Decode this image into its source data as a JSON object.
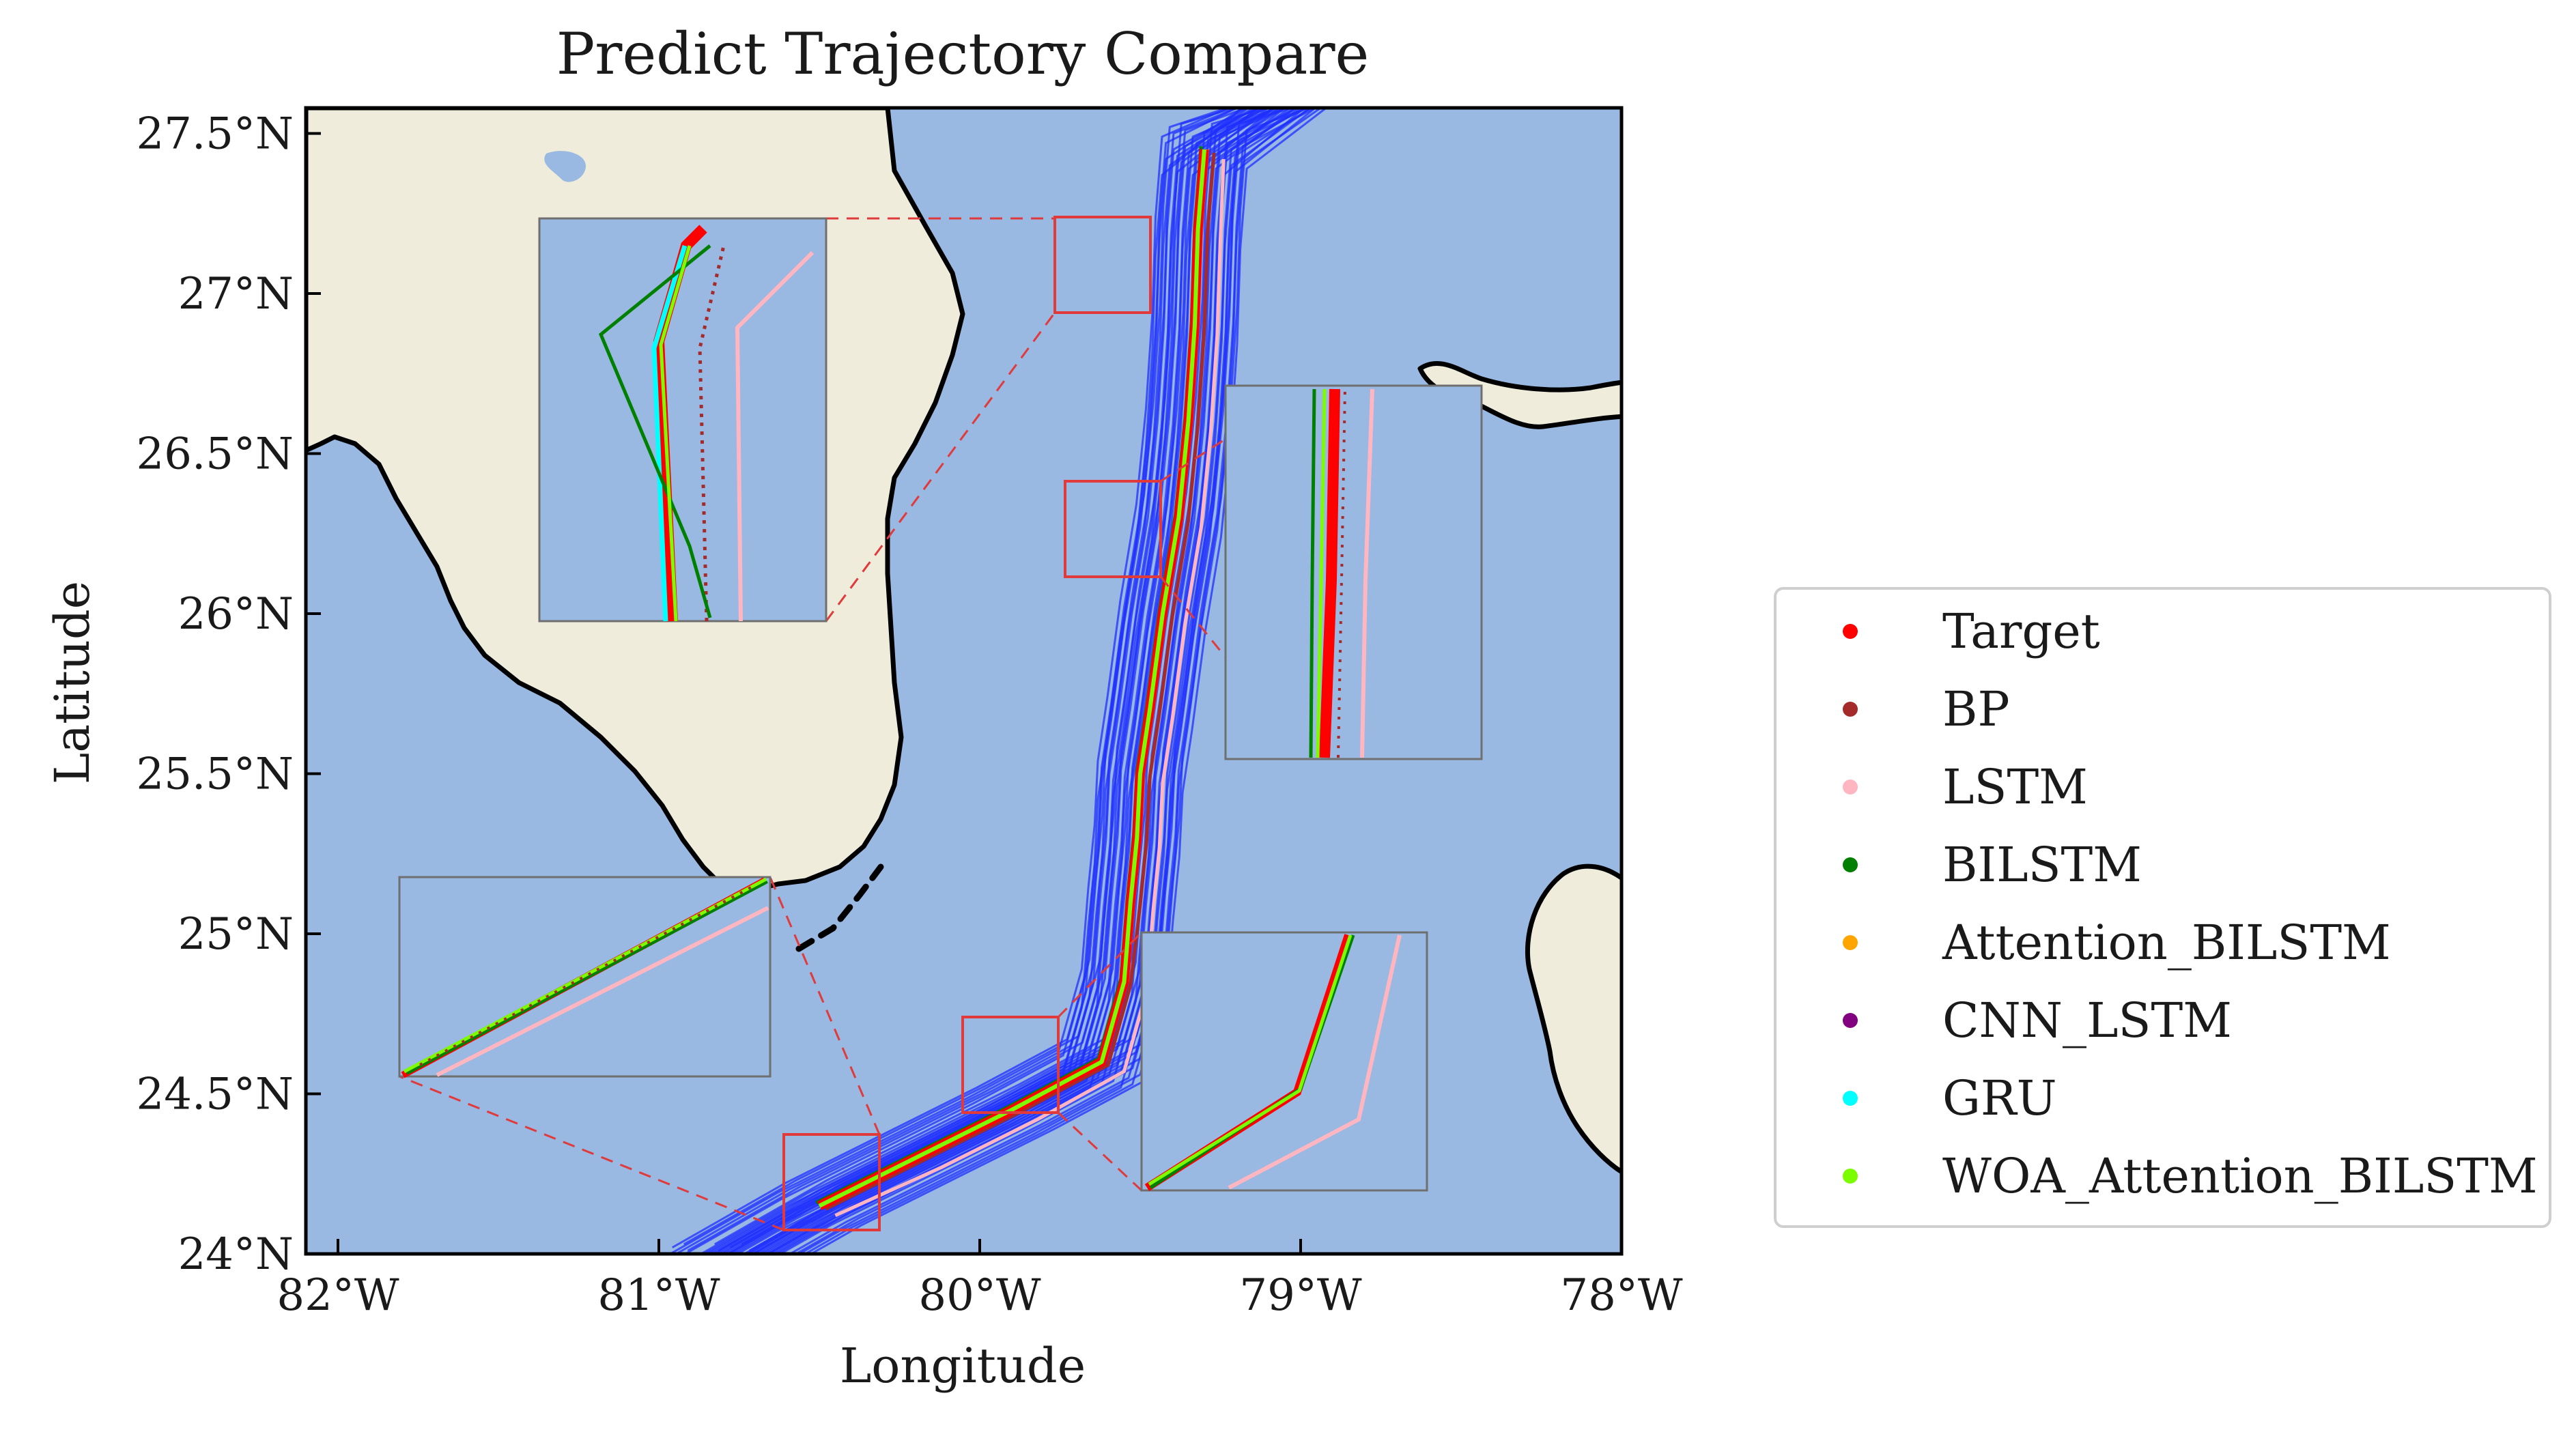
{
  "title": "Predict Trajectory Compare",
  "axes": {
    "xlabel": "Longitude",
    "ylabel": "Latitude",
    "x_ticks": [
      {
        "value": -82,
        "label": "82°W"
      },
      {
        "value": -81,
        "label": "81°W"
      },
      {
        "value": -80,
        "label": "80°W"
      },
      {
        "value": -79,
        "label": "79°W"
      },
      {
        "value": -78,
        "label": "78°W"
      }
    ],
    "y_ticks": [
      {
        "value": 24,
        "label": "24°N"
      },
      {
        "value": 24.5,
        "label": "24.5°N"
      },
      {
        "value": 25,
        "label": "25°N"
      },
      {
        "value": 25.5,
        "label": "25.5°N"
      },
      {
        "value": 26,
        "label": "26°N"
      },
      {
        "value": 26.5,
        "label": "26.5°N"
      },
      {
        "value": 27,
        "label": "27°N"
      },
      {
        "value": 27.5,
        "label": "27.5°N"
      }
    ]
  },
  "colors": {
    "ocean": "#99b8e2",
    "land": "#efecdc",
    "coastline": "#000000",
    "trajectory_bundle": "#1f2fff",
    "zoom_box": "#e03a3a",
    "inset_border": "#6f6f6f"
  },
  "legend": {
    "placement": "right",
    "items": [
      {
        "label": "Target",
        "color": "#ff0000"
      },
      {
        "label": "BP",
        "color": "#a52a2a"
      },
      {
        "label": "LSTM",
        "color": "#ffb6c1"
      },
      {
        "label": "BILSTM",
        "color": "#008000"
      },
      {
        "label": "Attention_BILSTM",
        "color": "#ffa500"
      },
      {
        "label": "CNN_LSTM",
        "color": "#800080"
      },
      {
        "label": "GRU",
        "color": "#00ffff"
      },
      {
        "label": "WOA_Attention_BILSTM",
        "color": "#7cfc00"
      }
    ]
  },
  "chart_data": {
    "type": "scatter",
    "title": "Predict Trajectory Compare",
    "xlabel": "Longitude",
    "ylabel": "Latitude",
    "xlim": [
      -82.1,
      -78.0
    ],
    "ylim": [
      24.0,
      27.58
    ],
    "grid": false,
    "legend_placement": "right",
    "series": [
      {
        "name": "Target",
        "x": [
          -80.5,
          -80.2,
          -79.9,
          -79.62,
          -79.55,
          -79.53,
          -79.51,
          -79.5,
          -79.47,
          -79.43,
          -79.38,
          -79.35,
          -79.33,
          -79.32,
          -79.3
        ],
        "y": [
          24.15,
          24.3,
          24.45,
          24.6,
          24.85,
          25.1,
          25.3,
          25.5,
          25.7,
          26.0,
          26.3,
          26.6,
          26.9,
          27.2,
          27.45
        ]
      },
      {
        "name": "BP",
        "x": [
          -80.48,
          -80.18,
          -79.88,
          -79.6,
          -79.53,
          -79.5,
          -79.48,
          -79.47,
          -79.44,
          -79.4,
          -79.35,
          -79.32,
          -79.3,
          -79.29,
          -79.27
        ],
        "y": [
          24.14,
          24.29,
          24.44,
          24.59,
          24.84,
          25.09,
          25.29,
          25.49,
          25.69,
          25.99,
          26.29,
          26.59,
          26.89,
          27.19,
          27.44
        ]
      },
      {
        "name": "LSTM",
        "x": [
          -80.45,
          -80.12,
          -79.82,
          -79.55,
          -79.48,
          -79.46,
          -79.44,
          -79.43,
          -79.4,
          -79.36,
          -79.31,
          -79.28,
          -79.26,
          -79.25,
          -79.24
        ],
        "y": [
          24.12,
          24.27,
          24.42,
          24.57,
          24.82,
          25.07,
          25.27,
          25.47,
          25.67,
          25.97,
          26.27,
          26.57,
          26.87,
          27.17,
          27.42
        ]
      },
      {
        "name": "BILSTM",
        "x": [
          -80.51,
          -80.21,
          -79.91,
          -79.63,
          -79.56,
          -79.54,
          -79.52,
          -79.51,
          -79.48,
          -79.44,
          -79.39,
          -79.36,
          -79.34,
          -79.33,
          -79.31
        ],
        "y": [
          24.16,
          24.31,
          24.46,
          24.61,
          24.86,
          25.11,
          25.31,
          25.51,
          25.71,
          26.01,
          26.31,
          26.61,
          26.91,
          27.21,
          27.46
        ]
      },
      {
        "name": "Attention_BILSTM",
        "x": [
          -80.49,
          -80.19,
          -79.89,
          -79.61,
          -79.54,
          -79.52,
          -79.5,
          -79.49,
          -79.46,
          -79.42,
          -79.37,
          -79.34,
          -79.32,
          -79.31,
          -79.29
        ],
        "y": [
          24.15,
          24.3,
          24.45,
          24.6,
          24.85,
          25.1,
          25.3,
          25.5,
          25.7,
          26.0,
          26.3,
          26.6,
          26.9,
          27.2,
          27.45
        ]
      },
      {
        "name": "CNN_LSTM",
        "x": [
          -80.5,
          -80.2,
          -79.9,
          -79.62,
          -79.55,
          -79.53,
          -79.51,
          -79.5,
          -79.47,
          -79.43,
          -79.38,
          -79.35,
          -79.33,
          -79.32,
          -79.3
        ],
        "y": [
          24.15,
          24.3,
          24.45,
          24.6,
          24.85,
          25.1,
          25.3,
          25.5,
          25.7,
          26.0,
          26.3,
          26.6,
          26.9,
          27.2,
          27.45
        ]
      },
      {
        "name": "GRU",
        "x": [
          -80.5,
          -80.2,
          -79.9,
          -79.62,
          -79.55,
          -79.53,
          -79.51,
          -79.5,
          -79.47,
          -79.43,
          -79.38,
          -79.35,
          -79.33,
          -79.32,
          -79.3
        ],
        "y": [
          24.15,
          24.3,
          24.45,
          24.6,
          24.85,
          25.1,
          25.3,
          25.5,
          25.7,
          26.0,
          26.3,
          26.6,
          26.9,
          27.2,
          27.45
        ]
      },
      {
        "name": "WOA_Attention_BILSTM",
        "x": [
          -80.5,
          -80.2,
          -79.9,
          -79.62,
          -79.55,
          -79.53,
          -79.51,
          -79.5,
          -79.47,
          -79.43,
          -79.38,
          -79.35,
          -79.33,
          -79.32,
          -79.3
        ],
        "y": [
          24.15,
          24.3,
          24.45,
          24.6,
          24.85,
          25.1,
          25.3,
          25.5,
          25.7,
          26.0,
          26.3,
          26.6,
          26.9,
          27.2,
          27.45
        ]
      }
    ]
  }
}
